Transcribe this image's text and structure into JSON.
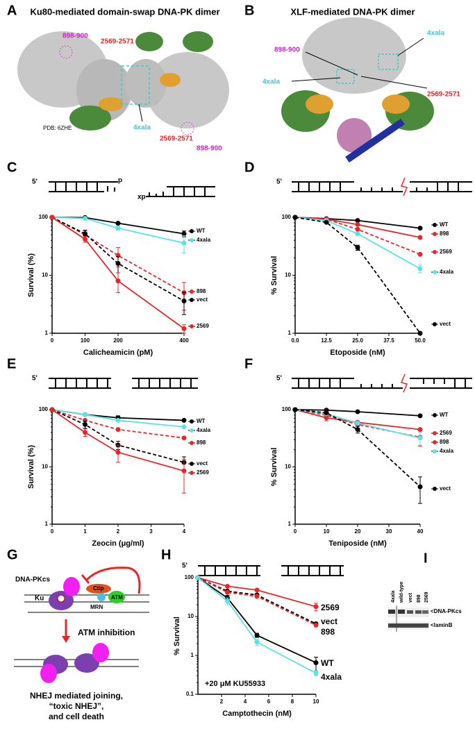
{
  "panel_labels": [
    "A",
    "B",
    "C",
    "D",
    "E",
    "F",
    "G",
    "H",
    "I"
  ],
  "panel_a": {
    "title": "Ku80-mediated domain-swap DNA-PK dimer",
    "annotations": [
      "898-900",
      "2569-2571",
      "4xala",
      "2569-2571",
      "898-900"
    ],
    "pdb": "PDB: 6ZHE"
  },
  "panel_b": {
    "title": "XLF-mediated DNA-PK dimer",
    "annotations": [
      "898-900",
      "4xala",
      "4xala",
      "2569-2571"
    ]
  },
  "schematics": {
    "C": [
      "5'",
      "p",
      "xp"
    ],
    "D": [
      "5'"
    ],
    "E": [
      "5'"
    ],
    "F": [
      "5'"
    ],
    "H": [
      "5'"
    ]
  },
  "panel_g": {
    "labels": [
      "DNA-PKcs",
      "Ku",
      "Ctip",
      "ATM",
      "MRN"
    ],
    "arrow_label": "ATM inhibition",
    "outcome": [
      "NHEJ mediated joining,",
      "“toxic NHEJ”,",
      "and cell death"
    ]
  },
  "panel_i": {
    "lanes": [
      "4xala",
      "wild-type",
      "vect",
      "898",
      "2569"
    ],
    "bands": [
      "<DNA-PKcs",
      "<laminB"
    ]
  },
  "chart_data": [
    {
      "type": "line",
      "x_label": "Calicheamicin (pM)",
      "y_label": "Survival (%)",
      "log_y": true,
      "xlim": [
        0,
        400
      ],
      "xticks": [
        0,
        100,
        200,
        400
      ],
      "ylim": [
        1,
        100
      ],
      "yticks": [
        1,
        10,
        100
      ],
      "series": [
        {
          "name": "WT",
          "color": "#000000",
          "line_style": "solid",
          "x": [
            0,
            100,
            200,
            400
          ],
          "values": [
            100,
            99,
            79,
            52
          ],
          "errors": [
            null,
            null,
            null,
            6
          ]
        },
        {
          "name": "4xala",
          "color": "#5ce1e6",
          "line_style": "solid",
          "x": [
            0,
            100,
            200,
            400
          ],
          "values": [
            100,
            96,
            65,
            36
          ],
          "errors": [
            null,
            null,
            5,
            12
          ]
        },
        {
          "name": "898",
          "color": "#e8262a",
          "line_style": "dashed",
          "x": [
            0,
            100,
            200,
            400
          ],
          "values": [
            100,
            50,
            22,
            5
          ],
          "errors": [
            null,
            8,
            8,
            2.5
          ]
        },
        {
          "name": "vect",
          "color": "#000000",
          "line_style": "dashed",
          "x": [
            0,
            100,
            200,
            400
          ],
          "values": [
            100,
            52,
            16,
            3.6
          ],
          "errors": [
            null,
            8,
            5,
            1.5
          ]
        },
        {
          "name": "2569",
          "color": "#e8262a",
          "line_style": "solid",
          "x": [
            0,
            100,
            200,
            400
          ],
          "values": [
            100,
            42,
            8,
            1.2
          ],
          "errors": [
            null,
            5,
            3,
            0.2
          ]
        }
      ]
    },
    {
      "type": "line",
      "x_label": "Etoposide (nM)",
      "y_label": "% Survival",
      "log_y": true,
      "xlim": [
        0,
        50
      ],
      "xticks": [
        {
          "value": 0,
          "label": "0.0"
        },
        12.5,
        {
          "value": 25,
          "label": "25.0"
        },
        37.5,
        {
          "value": 50,
          "label": "50.0"
        }
      ],
      "ylim": [
        1,
        100
      ],
      "yticks": [
        1,
        10,
        100
      ],
      "series": [
        {
          "name": "WT",
          "color": "#000000",
          "line_style": "solid",
          "x": [
            0,
            12.5,
            25,
            50
          ],
          "values": [
            100,
            95,
            88,
            65
          ],
          "errors": [
            null,
            null,
            null,
            null
          ]
        },
        {
          "name": "898",
          "color": "#e8262a",
          "line_style": "solid",
          "x": [
            0,
            12.5,
            25,
            50
          ],
          "values": [
            100,
            93,
            75,
            45
          ],
          "errors": [
            null,
            null,
            null,
            null
          ]
        },
        {
          "name": "2569",
          "color": "#e8262a",
          "line_style": "dashed",
          "x": [
            0,
            12.5,
            25,
            50
          ],
          "values": [
            100,
            93,
            62,
            23
          ],
          "errors": [
            null,
            null,
            null,
            null
          ]
        },
        {
          "name": "4xala",
          "color": "#5ce1e6",
          "line_style": "solid",
          "x": [
            0,
            12.5,
            25,
            50
          ],
          "values": [
            100,
            88,
            52,
            13
          ],
          "errors": [
            null,
            null,
            null,
            2
          ]
        },
        {
          "name": "vect",
          "color": "#000000",
          "line_style": "dashed",
          "x": [
            0,
            12.5,
            25,
            50
          ],
          "values": [
            100,
            82,
            30,
            1
          ],
          "errors": [
            null,
            null,
            3,
            null
          ]
        }
      ]
    },
    {
      "type": "line",
      "x_label": "Zeocin (μg/ml)",
      "y_label": "Survival (%)",
      "log_y": true,
      "xlim": [
        0,
        4
      ],
      "xticks": [
        0,
        1,
        2,
        3,
        4
      ],
      "ylim": [
        1,
        100
      ],
      "yticks": [
        1,
        10,
        100
      ],
      "series": [
        {
          "name": "WT",
          "color": "#000000",
          "line_style": "solid",
          "x": [
            0,
            1,
            2,
            4
          ],
          "values": [
            100,
            82,
            72,
            65
          ],
          "errors": [
            null,
            null,
            6,
            null
          ]
        },
        {
          "name": "4xala",
          "color": "#5ce1e6",
          "line_style": "solid",
          "x": [
            0,
            1,
            2,
            4
          ],
          "values": [
            100,
            82,
            65,
            50
          ],
          "errors": [
            null,
            null,
            null,
            null
          ]
        },
        {
          "name": "898",
          "color": "#e8262a",
          "line_style": "dashed",
          "x": [
            0,
            1,
            2,
            4
          ],
          "values": [
            100,
            65,
            45,
            32
          ],
          "errors": [
            null,
            null,
            null,
            null
          ]
        },
        {
          "name": "vect",
          "color": "#000000",
          "line_style": "dashed",
          "x": [
            0,
            1,
            2,
            4
          ],
          "values": [
            100,
            55,
            24,
            12
          ],
          "errors": [
            null,
            8,
            4,
            3
          ]
        },
        {
          "name": "2569",
          "color": "#e8262a",
          "line_style": "solid",
          "x": [
            0,
            1,
            2,
            4
          ],
          "values": [
            100,
            40,
            18,
            8.5
          ],
          "errors": [
            null,
            6,
            6,
            5
          ]
        }
      ]
    },
    {
      "type": "line",
      "x_label": "Teniposide (nM)",
      "y_label": "% Survival",
      "log_y": true,
      "xlim": [
        0,
        40
      ],
      "xticks": [
        0,
        10,
        20,
        30,
        40
      ],
      "ylim": [
        1,
        100
      ],
      "yticks": [
        1,
        10,
        100
      ],
      "series": [
        {
          "name": "WT",
          "color": "#000000",
          "line_style": "solid",
          "x": [
            0,
            10,
            20,
            40
          ],
          "values": [
            100,
            98,
            92,
            78
          ],
          "errors": [
            null,
            null,
            null,
            null
          ]
        },
        {
          "name": "2569",
          "color": "#e8262a",
          "line_style": "solid",
          "x": [
            0,
            10,
            20,
            40
          ],
          "values": [
            100,
            72,
            60,
            45
          ],
          "errors": [
            null,
            8,
            null,
            null
          ]
        },
        {
          "name": "898",
          "color": "#e8262a",
          "line_style": "dashed",
          "x": [
            0,
            10,
            20,
            40
          ],
          "values": [
            100,
            80,
            55,
            33
          ],
          "errors": [
            null,
            null,
            null,
            10
          ]
        },
        {
          "name": "4xala",
          "color": "#5ce1e6",
          "line_style": "solid",
          "x": [
            0,
            10,
            20,
            40
          ],
          "values": [
            100,
            85,
            58,
            32
          ],
          "errors": [
            null,
            null,
            null,
            8
          ]
        },
        {
          "name": "vect",
          "color": "#000000",
          "line_style": "dashed",
          "x": [
            0,
            10,
            20,
            40
          ],
          "values": [
            100,
            88,
            45,
            4.5
          ],
          "errors": [
            null,
            null,
            6,
            2.2
          ]
        }
      ]
    },
    {
      "type": "line",
      "x_label": "Camptothecin (nM)",
      "y_label": "% Survival",
      "log_y": true,
      "annotation": "+20 μM KU55933",
      "xlim": [
        0,
        10
      ],
      "xticks": [
        2,
        4,
        6,
        8,
        10
      ],
      "ylim": [
        0.1,
        100
      ],
      "yticks": [
        0.1,
        1,
        10,
        100
      ],
      "series": [
        {
          "name": "2569",
          "color": "#e8262a",
          "line_style": "solid",
          "x": [
            0,
            2.5,
            5,
            10
          ],
          "values": [
            100,
            60,
            48,
            18
          ],
          "errors": [
            null,
            null,
            null,
            4
          ]
        },
        {
          "name": "vect",
          "color": "#000000",
          "line_style": "dashed",
          "x": [
            0,
            2.5,
            5,
            10
          ],
          "values": [
            100,
            45,
            36,
            6.5
          ],
          "errors": [
            null,
            null,
            null,
            null
          ]
        },
        {
          "name": "898",
          "color": "#e8262a",
          "line_style": "dashed",
          "x": [
            0,
            2.5,
            5,
            10
          ],
          "values": [
            100,
            42,
            33,
            6
          ],
          "errors": [
            null,
            null,
            null,
            null
          ]
        },
        {
          "name": "WT",
          "color": "#000000",
          "line_style": "solid",
          "x": [
            0,
            2.5,
            5,
            10
          ],
          "values": [
            100,
            30,
            3.3,
            0.65
          ],
          "errors": [
            null,
            5,
            0.4,
            0.25
          ]
        },
        {
          "name": "4xala",
          "color": "#5ce1e6",
          "line_style": "solid",
          "x": [
            0,
            2.5,
            5,
            10
          ],
          "values": [
            100,
            25,
            2.2,
            0.35
          ],
          "errors": [
            null,
            5,
            0.4,
            0.05
          ]
        }
      ]
    }
  ]
}
